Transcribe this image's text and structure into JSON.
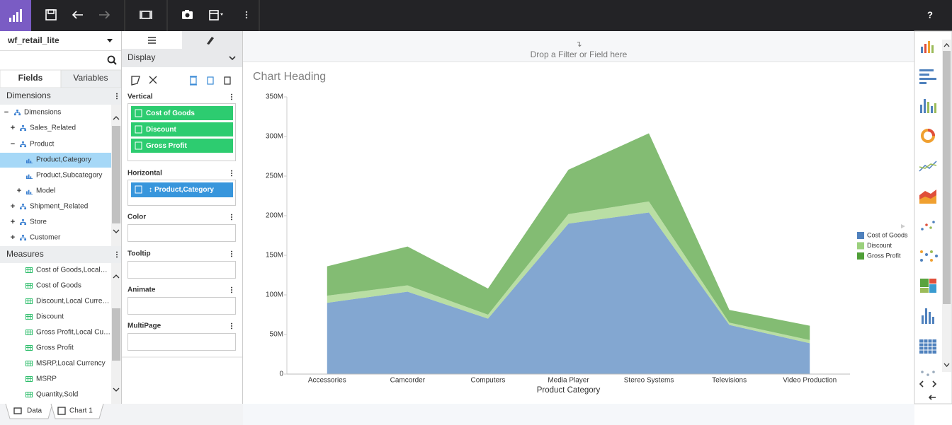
{
  "toolbar": {
    "help": "?"
  },
  "datasource": "wf_retail_lite",
  "tabs": {
    "fields": "Fields",
    "variables": "Variables"
  },
  "dimensions": {
    "title": "Dimensions",
    "tree": [
      "Dimensions",
      "Sales_Related",
      "Product",
      "Product,Category",
      "Product,Subcategory",
      "Model",
      "Shipment_Related",
      "Store",
      "Customer"
    ]
  },
  "measures": {
    "title": "Measures",
    "items": [
      "Cost of Goods,Local…",
      "Cost of Goods",
      "Discount,Local Curre…",
      "Discount",
      "Gross Profit,Local Cu…",
      "Gross Profit",
      "MSRP,Local Currency",
      "MSRP",
      "Quantity,Sold"
    ]
  },
  "bottom_tabs": [
    "Data",
    "Chart 1"
  ],
  "display": "Display",
  "buckets": {
    "vertical": {
      "title": "Vertical",
      "fields": [
        "Cost of Goods",
        "Discount",
        "Gross Profit"
      ]
    },
    "horizontal": {
      "title": "Horizontal",
      "fields": [
        "Product,Category"
      ]
    },
    "color": "Color",
    "tooltip": "Tooltip",
    "animate": "Animate",
    "multipage": "MultiPage"
  },
  "drop_zone": "Drop a Filter or Field here",
  "chart_data": {
    "type": "area",
    "stacked": true,
    "title": "Chart Heading",
    "x_label": "Product Category",
    "categories": [
      "Accessories",
      "Camcorder",
      "Computers",
      "Media Player",
      "Stereo Systems",
      "Televisions",
      "Video Production"
    ],
    "series": [
      {
        "name": "Cost of Goods",
        "color": "#4f81bd",
        "values": [
          90000000,
          104000000,
          70000000,
          190000000,
          204000000,
          62000000,
          39000000
        ]
      },
      {
        "name": "Discount",
        "color": "#9bd07d",
        "values": [
          9000000,
          8000000,
          5000000,
          12000000,
          14000000,
          3000000,
          4000000
        ]
      },
      {
        "name": "Gross Profit",
        "color": "#4f9f37",
        "values": [
          37000000,
          49000000,
          33000000,
          56000000,
          86000000,
          16000000,
          18000000
        ]
      }
    ],
    "ylim": [
      0,
      350000000
    ],
    "yticks": [
      0,
      {
        "value": 50000000,
        "label": "50M"
      },
      {
        "value": 100000000,
        "label": "100M"
      },
      {
        "value": 150000000,
        "label": "150M"
      },
      {
        "value": 200000000,
        "label": "200M"
      },
      {
        "value": 250000000,
        "label": "250M"
      },
      {
        "value": 300000000,
        "label": "300M"
      },
      {
        "value": 350000000,
        "label": "350M"
      }
    ],
    "legend": "right"
  }
}
